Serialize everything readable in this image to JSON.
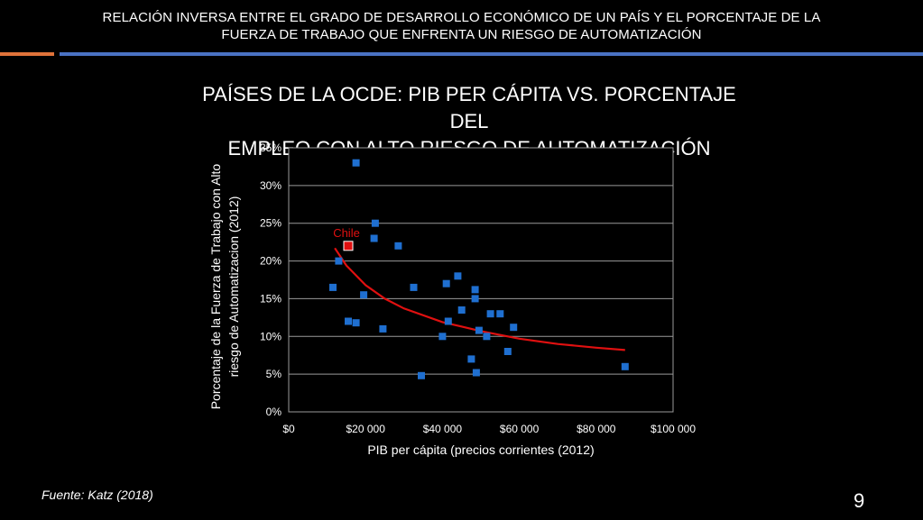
{
  "header": {
    "line1": "RELACIÓN INVERSA ENTRE EL GRADO DE DESARROLLO ECONÓMICO DE UN PAÍS Y EL PORCENTAJE DE LA",
    "line2": "FUERZA DE TRABAJO QUE ENFRENTA UN RIESGO DE AUTOMATIZACIÓN"
  },
  "colors": {
    "accent_orange": "#e0733a",
    "accent_blue": "#4a72c4",
    "point_blue": "#1f6fd0",
    "highlight_red": "#e01010"
  },
  "chart_data": {
    "type": "scatter",
    "title_line1": "PAÍSES DE LA OCDE: PIB PER CÁPITA VS. PORCENTAJE DEL",
    "title_line2": "EMPLEO CON ALTO RIESGO DE AUTOMATIZACIÓN",
    "xlabel": "PIB per cápita (precios corrientes (2012)",
    "ylabel_line1": "Porcentaje de la Fuerza de Trabajo con Alto",
    "ylabel_line2": "riesgo de Automatizacion (2012)",
    "xlim": [
      0,
      100000
    ],
    "ylim": [
      0,
      35
    ],
    "x_ticks": [
      0,
      20000,
      40000,
      60000,
      80000,
      100000
    ],
    "x_tick_labels": [
      "$0",
      "$20 000",
      "$40 000",
      "$60 000",
      "$80 000",
      "$100 000"
    ],
    "y_ticks": [
      0,
      5,
      10,
      15,
      20,
      25,
      30,
      35
    ],
    "y_tick_labels": [
      "0%",
      "5%",
      "10%",
      "15%",
      "20%",
      "25%",
      "30%",
      "35%"
    ],
    "grid": "horizontal",
    "points": [
      {
        "x": 17500,
        "y": 33
      },
      {
        "x": 22500,
        "y": 25
      },
      {
        "x": 22200,
        "y": 23
      },
      {
        "x": 28500,
        "y": 22
      },
      {
        "x": 13000,
        "y": 20
      },
      {
        "x": 11500,
        "y": 16.5
      },
      {
        "x": 19500,
        "y": 15.5
      },
      {
        "x": 15500,
        "y": 12
      },
      {
        "x": 17500,
        "y": 11.8
      },
      {
        "x": 24500,
        "y": 11
      },
      {
        "x": 32500,
        "y": 16.5
      },
      {
        "x": 44000,
        "y": 18
      },
      {
        "x": 41000,
        "y": 17
      },
      {
        "x": 48500,
        "y": 16.2
      },
      {
        "x": 48500,
        "y": 15
      },
      {
        "x": 45000,
        "y": 13.5
      },
      {
        "x": 52500,
        "y": 13
      },
      {
        "x": 55000,
        "y": 13
      },
      {
        "x": 41500,
        "y": 12
      },
      {
        "x": 58500,
        "y": 11.2
      },
      {
        "x": 49500,
        "y": 10.8
      },
      {
        "x": 51500,
        "y": 10
      },
      {
        "x": 40000,
        "y": 10
      },
      {
        "x": 57000,
        "y": 8
      },
      {
        "x": 47500,
        "y": 7
      },
      {
        "x": 48800,
        "y": 5.2
      },
      {
        "x": 34500,
        "y": 4.8
      },
      {
        "x": 87500,
        "y": 6
      }
    ],
    "highlight": {
      "label": "Chile",
      "x": 15500,
      "y": 22
    },
    "trendline": [
      {
        "x": 12000,
        "y": 21.7
      },
      {
        "x": 15000,
        "y": 19.4
      },
      {
        "x": 20000,
        "y": 16.8
      },
      {
        "x": 25000,
        "y": 15.0
      },
      {
        "x": 30000,
        "y": 13.7
      },
      {
        "x": 40000,
        "y": 11.9
      },
      {
        "x": 50000,
        "y": 10.7
      },
      {
        "x": 60000,
        "y": 9.7
      },
      {
        "x": 70000,
        "y": 9.0
      },
      {
        "x": 80000,
        "y": 8.5
      },
      {
        "x": 87500,
        "y": 8.2
      }
    ]
  },
  "footer": {
    "source": "Fuente: Katz (2018)",
    "page_number": "9"
  }
}
